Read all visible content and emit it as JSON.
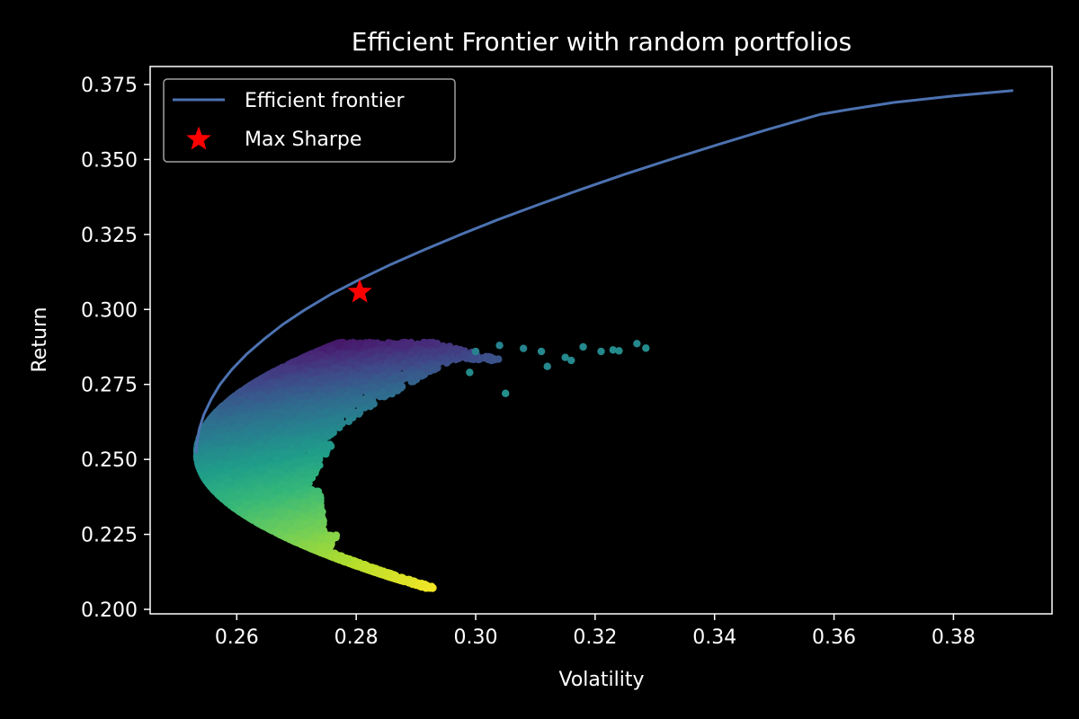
{
  "chart_data": {
    "type": "scatter",
    "title": "Efficient Frontier with random portfolios",
    "xlabel": "Volatility",
    "ylabel": "Return",
    "xlim": [
      0.2455,
      0.3965
    ],
    "ylim": [
      0.1985,
      0.381
    ],
    "x_ticks": [
      0.26,
      0.28,
      0.3,
      0.32,
      0.34,
      0.36,
      0.38
    ],
    "x_tick_labels": [
      "0.26",
      "0.28",
      "0.30",
      "0.32",
      "0.34",
      "0.36",
      "0.38"
    ],
    "y_ticks": [
      0.2,
      0.225,
      0.25,
      0.275,
      0.3,
      0.325,
      0.35,
      0.375
    ],
    "y_tick_labels": [
      "0.200",
      "0.225",
      "0.250",
      "0.275",
      "0.300",
      "0.325",
      "0.350",
      "0.375"
    ],
    "grid": false,
    "legend": {
      "position": "top-left",
      "entries": [
        {
          "label": "Efficient frontier",
          "marker": "line"
        },
        {
          "label": "Max Sharpe",
          "marker": "star"
        }
      ]
    },
    "series": [
      {
        "name": "Efficient frontier",
        "kind": "line",
        "color": "#4c72b0",
        "x": [
          0.2532,
          0.2533,
          0.2537,
          0.2545,
          0.2557,
          0.2572,
          0.2592,
          0.2616,
          0.2645,
          0.2677,
          0.2715,
          0.2757,
          0.2806,
          0.2858,
          0.2915,
          0.2975,
          0.3038,
          0.3106,
          0.3176,
          0.3249,
          0.3326,
          0.3406,
          0.3489,
          0.3576,
          0.362,
          0.37,
          0.38,
          0.39
        ],
        "y": [
          0.252,
          0.255,
          0.26,
          0.265,
          0.27,
          0.275,
          0.28,
          0.285,
          0.29,
          0.295,
          0.3,
          0.305,
          0.31,
          0.315,
          0.32,
          0.325,
          0.33,
          0.335,
          0.34,
          0.345,
          0.35,
          0.355,
          0.36,
          0.365,
          0.3665,
          0.369,
          0.3712,
          0.373
        ]
      },
      {
        "name": "Max Sharpe",
        "kind": "marker",
        "marker": "star",
        "color": "#ff0000",
        "x": [
          0.2806
        ],
        "y": [
          0.3058
        ]
      },
      {
        "name": "random portfolios",
        "kind": "scatter",
        "colormap": "viridis",
        "count": 9000,
        "bounds": {
          "vol_min": 0.2525,
          "return_min": 0.207,
          "return_max": 0.289
        },
        "outlier_cluster": {
          "x": [
            0.3,
            0.304,
            0.308,
            0.311,
            0.315,
            0.318,
            0.321,
            0.324,
            0.327,
            0.3285,
            0.305,
            0.299,
            0.312,
            0.316,
            0.323
          ],
          "y": [
            0.286,
            0.288,
            0.287,
            0.286,
            0.284,
            0.2875,
            0.286,
            0.2862,
            0.2886,
            0.2871,
            0.272,
            0.279,
            0.281,
            0.283,
            0.2865
          ],
          "c": [
            0.45,
            0.45,
            0.45,
            0.47,
            0.47,
            0.47,
            0.47,
            0.48,
            0.47,
            0.48,
            0.5,
            0.48,
            0.47,
            0.47,
            0.48
          ]
        }
      }
    ],
    "colors": {
      "background": "#000000",
      "axes": "#ffffff",
      "text": "#ffffff",
      "frontier": "#4c72b0",
      "max_sharpe": "#ff0000",
      "legend_border": "#a0a0a0"
    }
  }
}
